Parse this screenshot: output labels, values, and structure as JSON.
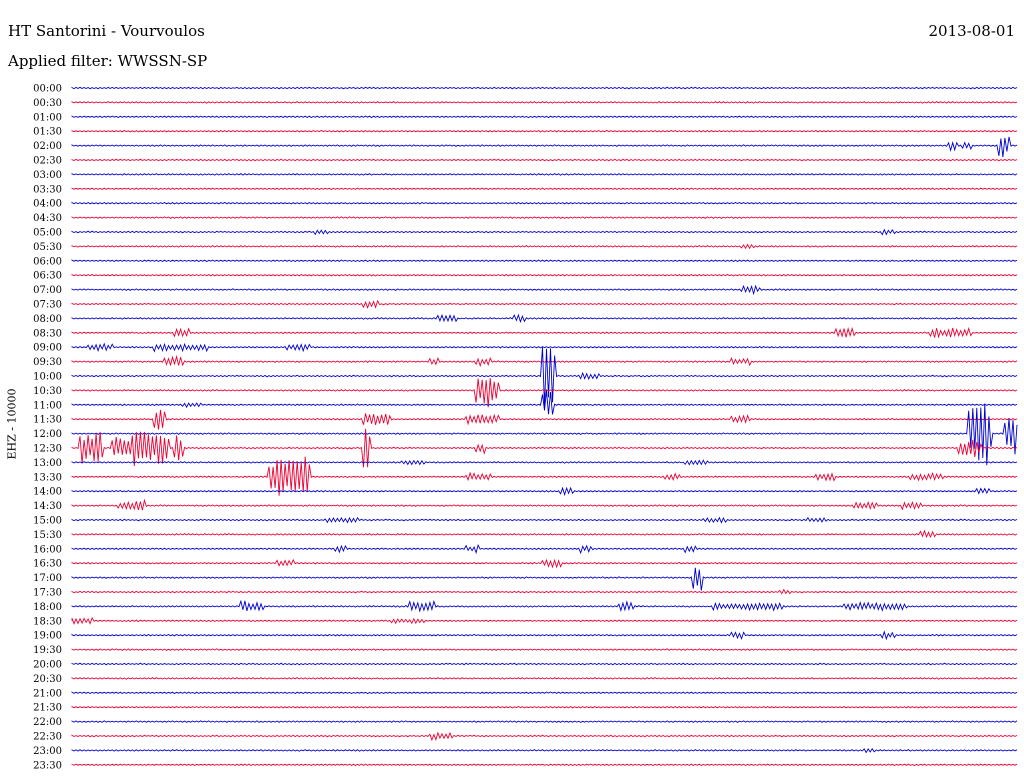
{
  "header": {
    "title": "HT Santorini - Vourvoulos",
    "date": "2013-08-01",
    "filter": "Applied filter: WWSSN-SP"
  },
  "chart_data": {
    "type": "line",
    "title": "HT Santorini - Vourvoulos",
    "subtitle": "Applied filter: WWSSN-SP",
    "ylabel": "EHZ - 10000",
    "xlabel": "",
    "grid": false,
    "colors": [
      "#0000cc",
      "#ee0033"
    ],
    "rows": [
      "00:00",
      "00:30",
      "01:00",
      "01:30",
      "02:00",
      "02:30",
      "03:00",
      "03:30",
      "04:00",
      "04:30",
      "05:00",
      "05:30",
      "06:00",
      "06:30",
      "07:00",
      "07:30",
      "08:00",
      "08:30",
      "09:00",
      "09:30",
      "10:00",
      "10:30",
      "11:00",
      "11:30",
      "12:00",
      "12:30",
      "13:00",
      "13:30",
      "14:00",
      "14:30",
      "15:00",
      "15:30",
      "16:00",
      "16:30",
      "17:00",
      "17:30",
      "18:00",
      "18:30",
      "19:00",
      "19:30",
      "20:00",
      "20:30",
      "21:00",
      "21:30",
      "22:00",
      "22:30",
      "23:00",
      "23:30"
    ],
    "events": [
      {
        "row": "02:00",
        "t": 0.93,
        "amp": 0.4,
        "dur": 0.004
      },
      {
        "row": "02:00",
        "t": 0.945,
        "amp": 0.3,
        "dur": 0.004
      },
      {
        "row": "02:00",
        "t": 0.983,
        "amp": 1.0,
        "dur": 0.006
      },
      {
        "row": "05:00",
        "t": 0.26,
        "amp": 0.2,
        "dur": 0.008
      },
      {
        "row": "05:00",
        "t": 0.86,
        "amp": 0.2,
        "dur": 0.008
      },
      {
        "row": "05:30",
        "t": 0.71,
        "amp": 0.2,
        "dur": 0.01
      },
      {
        "row": "07:00",
        "t": 0.71,
        "amp": 0.3,
        "dur": 0.015
      },
      {
        "row": "07:30",
        "t": 0.31,
        "amp": 0.3,
        "dur": 0.012
      },
      {
        "row": "08:00",
        "t": 0.39,
        "amp": 0.3,
        "dur": 0.015
      },
      {
        "row": "08:00",
        "t": 0.47,
        "amp": 0.3,
        "dur": 0.006
      },
      {
        "row": "08:30",
        "t": 0.11,
        "amp": 0.4,
        "dur": 0.012
      },
      {
        "row": "08:30",
        "t": 0.81,
        "amp": 0.4,
        "dur": 0.015
      },
      {
        "row": "08:30",
        "t": 0.91,
        "amp": 0.4,
        "dur": 0.04
      },
      {
        "row": "09:00",
        "t": 0.02,
        "amp": 0.3,
        "dur": 0.02
      },
      {
        "row": "09:00",
        "t": 0.09,
        "amp": 0.3,
        "dur": 0.05
      },
      {
        "row": "09:00",
        "t": 0.23,
        "amp": 0.3,
        "dur": 0.02
      },
      {
        "row": "09:30",
        "t": 0.1,
        "amp": 0.4,
        "dur": 0.015
      },
      {
        "row": "09:30",
        "t": 0.38,
        "amp": 0.3,
        "dur": 0.006
      },
      {
        "row": "09:30",
        "t": 0.43,
        "amp": 0.3,
        "dur": 0.01
      },
      {
        "row": "09:30",
        "t": 0.7,
        "amp": 0.3,
        "dur": 0.015
      },
      {
        "row": "10:00",
        "t": 0.5,
        "amp": 2.6,
        "dur": 0.008
      },
      {
        "row": "10:00",
        "t": 0.54,
        "amp": 0.3,
        "dur": 0.015
      },
      {
        "row": "10:30",
        "t": 0.43,
        "amp": 1.3,
        "dur": 0.02
      },
      {
        "row": "11:00",
        "t": 0.5,
        "amp": 1.2,
        "dur": 0.006
      },
      {
        "row": "11:00",
        "t": 0.12,
        "amp": 0.2,
        "dur": 0.015
      },
      {
        "row": "11:30",
        "t": 0.09,
        "amp": 1.0,
        "dur": 0.006
      },
      {
        "row": "11:30",
        "t": 0.31,
        "amp": 0.5,
        "dur": 0.025
      },
      {
        "row": "11:30",
        "t": 0.42,
        "amp": 0.4,
        "dur": 0.03
      },
      {
        "row": "11:30",
        "t": 0.7,
        "amp": 0.3,
        "dur": 0.015
      },
      {
        "row": "12:00",
        "t": 0.95,
        "amp": 2.5,
        "dur": 0.02
      },
      {
        "row": "12:00",
        "t": 0.99,
        "amp": 1.5,
        "dur": 0.015
      },
      {
        "row": "12:30",
        "t": 0.01,
        "amp": 1.3,
        "dur": 0.02
      },
      {
        "row": "12:30",
        "t": 0.045,
        "amp": 1.0,
        "dur": 0.015
      },
      {
        "row": "12:30",
        "t": 0.065,
        "amp": 1.4,
        "dur": 0.035
      },
      {
        "row": "12:30",
        "t": 0.11,
        "amp": 1.2,
        "dur": 0.005
      },
      {
        "row": "12:30",
        "t": 0.31,
        "amp": 2.0,
        "dur": 0.004
      },
      {
        "row": "12:30",
        "t": 0.94,
        "amp": 0.8,
        "dur": 0.02
      },
      {
        "row": "12:30",
        "t": 0.43,
        "amp": 0.4,
        "dur": 0.004
      },
      {
        "row": "13:00",
        "t": 0.65,
        "amp": 0.2,
        "dur": 0.02
      },
      {
        "row": "13:00",
        "t": 0.35,
        "amp": 0.2,
        "dur": 0.02
      },
      {
        "row": "13:30",
        "t": 0.21,
        "amp": 1.6,
        "dur": 0.04
      },
      {
        "row": "13:30",
        "t": 0.42,
        "amp": 0.3,
        "dur": 0.02
      },
      {
        "row": "13:30",
        "t": 0.63,
        "amp": 0.3,
        "dur": 0.01
      },
      {
        "row": "13:30",
        "t": 0.79,
        "amp": 0.3,
        "dur": 0.015
      },
      {
        "row": "13:30",
        "t": 0.89,
        "amp": 0.3,
        "dur": 0.03
      },
      {
        "row": "14:00",
        "t": 0.52,
        "amp": 0.3,
        "dur": 0.008
      },
      {
        "row": "14:00",
        "t": 0.96,
        "amp": 0.3,
        "dur": 0.008
      },
      {
        "row": "14:30",
        "t": 0.05,
        "amp": 0.3,
        "dur": 0.02
      },
      {
        "row": "14:30",
        "t": 0.07,
        "amp": 0.6,
        "dur": 0.004
      },
      {
        "row": "14:30",
        "t": 0.83,
        "amp": 0.3,
        "dur": 0.02
      },
      {
        "row": "14:30",
        "t": 0.88,
        "amp": 0.3,
        "dur": 0.015
      },
      {
        "row": "15:00",
        "t": 0.27,
        "amp": 0.2,
        "dur": 0.03
      },
      {
        "row": "15:00",
        "t": 0.67,
        "amp": 0.2,
        "dur": 0.02
      },
      {
        "row": "15:00",
        "t": 0.78,
        "amp": 0.2,
        "dur": 0.015
      },
      {
        "row": "15:30",
        "t": 0.9,
        "amp": 0.3,
        "dur": 0.01
      },
      {
        "row": "16:00",
        "t": 0.28,
        "amp": 0.3,
        "dur": 0.008
      },
      {
        "row": "16:00",
        "t": 0.42,
        "amp": 0.3,
        "dur": 0.008
      },
      {
        "row": "16:00",
        "t": 0.54,
        "amp": 0.3,
        "dur": 0.008
      },
      {
        "row": "16:00",
        "t": 0.65,
        "amp": 0.3,
        "dur": 0.008
      },
      {
        "row": "16:30",
        "t": 0.22,
        "amp": 0.3,
        "dur": 0.012
      },
      {
        "row": "16:30",
        "t": 0.5,
        "amp": 0.3,
        "dur": 0.015
      },
      {
        "row": "17:00",
        "t": 0.66,
        "amp": 1.0,
        "dur": 0.004
      },
      {
        "row": "17:30",
        "t": 0.75,
        "amp": 0.2,
        "dur": 0.008
      },
      {
        "row": "18:00",
        "t": 0.18,
        "amp": 0.4,
        "dur": 0.02
      },
      {
        "row": "18:00",
        "t": 0.36,
        "amp": 0.4,
        "dur": 0.02
      },
      {
        "row": "18:00",
        "t": 0.58,
        "amp": 0.4,
        "dur": 0.012
      },
      {
        "row": "18:00",
        "t": 0.68,
        "amp": 0.3,
        "dur": 0.07
      },
      {
        "row": "18:00",
        "t": 0.82,
        "amp": 0.3,
        "dur": 0.06
      },
      {
        "row": "18:30",
        "t": 0.0,
        "amp": 0.3,
        "dur": 0.02
      },
      {
        "row": "18:30",
        "t": 0.34,
        "amp": 0.2,
        "dur": 0.03
      },
      {
        "row": "19:00",
        "t": 0.7,
        "amp": 0.3,
        "dur": 0.008
      },
      {
        "row": "19:00",
        "t": 0.86,
        "amp": 0.3,
        "dur": 0.008
      },
      {
        "row": "22:30",
        "t": 0.38,
        "amp": 0.3,
        "dur": 0.02
      },
      {
        "row": "23:00",
        "t": 0.84,
        "amp": 0.2,
        "dur": 0.008
      }
    ]
  }
}
